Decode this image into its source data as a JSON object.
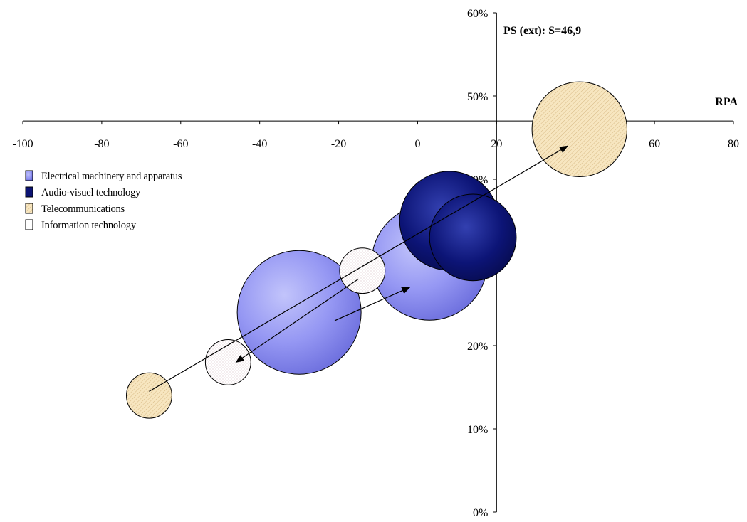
{
  "chart_data": {
    "type": "scatter",
    "subtype": "bubble",
    "title": "",
    "xlabel": "RPA",
    "ylabel": "PS (ext): S=46,9",
    "xlim": [
      -100,
      80
    ],
    "ylim": [
      0,
      60
    ],
    "x_ticks": [
      "-100",
      "-80",
      "-60",
      "-40",
      "-20",
      "0",
      "20",
      "40",
      "60",
      "80"
    ],
    "x_tick_values": [
      -100,
      -80,
      -60,
      -40,
      -20,
      0,
      20,
      40,
      60,
      80
    ],
    "y_ticks": [
      "0%",
      "10%",
      "20%",
      "30%",
      "40%",
      "50%",
      "60%"
    ],
    "y_tick_values": [
      0,
      10,
      20,
      30,
      40,
      50,
      60
    ],
    "x_axis_crosses_y": 47,
    "y_axis_crosses_x": 20,
    "grid": false,
    "legend_position": "top-left",
    "series": [
      {
        "name": "Electrical machinery and apparatus",
        "color": "#8a8cef",
        "points": [
          {
            "x": -30,
            "y": 24,
            "size": 30
          },
          {
            "x": 3,
            "y": 30,
            "size": 28
          }
        ]
      },
      {
        "name": "Audio-visuel technology",
        "color": "#0c1374",
        "points": [
          {
            "x": 8,
            "y": 35,
            "size": 24
          },
          {
            "x": 14,
            "y": 33,
            "size": 21
          }
        ]
      },
      {
        "name": "Telecommunications",
        "color": "#f4dfb4",
        "points": [
          {
            "x": -68,
            "y": 14,
            "size": 11
          },
          {
            "x": 41,
            "y": 46,
            "size": 23
          }
        ]
      },
      {
        "name": "Information technology",
        "color": "#ffffff",
        "points": [
          {
            "x": -48,
            "y": 18,
            "size": 11
          },
          {
            "x": -14,
            "y": 29,
            "size": 11
          }
        ]
      }
    ],
    "arrows": [
      {
        "from": [
          -68,
          14.5
        ],
        "to": [
          38,
          44
        ]
      },
      {
        "from": [
          -21,
          23
        ],
        "to": [
          -2,
          27
        ]
      },
      {
        "from": [
          -15,
          28
        ],
        "to": [
          -46,
          18
        ]
      }
    ]
  }
}
